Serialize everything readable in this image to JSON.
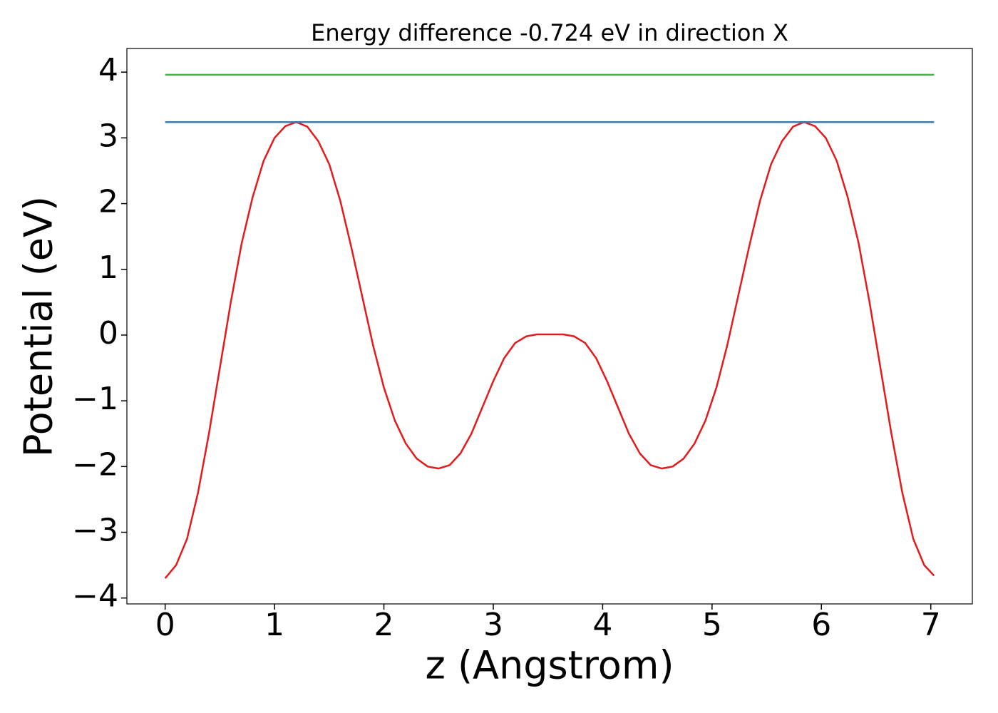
{
  "chart_data": {
    "type": "line",
    "title": "Energy difference -0.724 eV in direction X",
    "xlabel": "z (Angstrom)",
    "ylabel": "Potential (eV)",
    "xlim": [
      -0.35,
      7.38
    ],
    "ylim": [
      -4.09,
      4.36
    ],
    "xticks": [
      0,
      1,
      2,
      3,
      4,
      5,
      6,
      7
    ],
    "yticks": [
      {
        "value": -4,
        "label": "−4"
      },
      {
        "value": -3,
        "label": "−3"
      },
      {
        "value": -2,
        "label": "−2"
      },
      {
        "value": -1,
        "label": "−1"
      },
      0,
      1,
      2,
      3,
      4
    ],
    "grid": false,
    "series": [
      {
        "color": "#e41a1c",
        "x": [
          0,
          0.1,
          0.2,
          0.3,
          0.4,
          0.5,
          0.6,
          0.7,
          0.8,
          0.9,
          1.0,
          1.1,
          1.2,
          1.3,
          1.4,
          1.5,
          1.6,
          1.7,
          1.8,
          1.9,
          2.0,
          2.1,
          2.2,
          2.3,
          2.4,
          2.5,
          2.6,
          2.7,
          2.8,
          2.9,
          3.0,
          3.1,
          3.2,
          3.3,
          3.4,
          3.5,
          3.64,
          3.74,
          3.84,
          3.94,
          4.04,
          4.14,
          4.24,
          4.34,
          4.44,
          4.54,
          4.64,
          4.74,
          4.84,
          4.94,
          5.04,
          5.14,
          5.24,
          5.34,
          5.44,
          5.54,
          5.64,
          5.74,
          5.84,
          5.94,
          6.04,
          6.14,
          6.24,
          6.34,
          6.44,
          6.54,
          6.64,
          6.74,
          6.84,
          6.94,
          7.03
        ],
        "values": [
          -3.7,
          -3.5,
          -3.1,
          -2.4,
          -1.5,
          -0.5,
          0.5,
          1.4,
          2.1,
          2.65,
          3.0,
          3.18,
          3.24,
          3.17,
          2.95,
          2.6,
          2.05,
          1.35,
          0.6,
          -0.15,
          -0.8,
          -1.3,
          -1.65,
          -1.88,
          -2.0,
          -2.03,
          -1.98,
          -1.8,
          -1.5,
          -1.1,
          -0.7,
          -0.35,
          -0.12,
          -0.02,
          0.01,
          0.01,
          0.01,
          -0.02,
          -0.12,
          -0.35,
          -0.7,
          -1.1,
          -1.5,
          -1.8,
          -1.98,
          -2.03,
          -2.0,
          -1.88,
          -1.65,
          -1.3,
          -0.8,
          -0.15,
          0.6,
          1.35,
          2.05,
          2.6,
          2.95,
          3.17,
          3.24,
          3.18,
          3.0,
          2.65,
          2.1,
          1.4,
          0.5,
          -0.5,
          -1.5,
          -2.4,
          -3.1,
          -3.5,
          -3.66
        ]
      },
      {
        "color": "#377eb8",
        "x": [
          0,
          7.03
        ],
        "values": [
          3.24,
          3.24
        ]
      },
      {
        "color": "#4daf4a",
        "x": [
          0,
          7.03
        ],
        "values": [
          3.96,
          3.96
        ]
      }
    ]
  }
}
